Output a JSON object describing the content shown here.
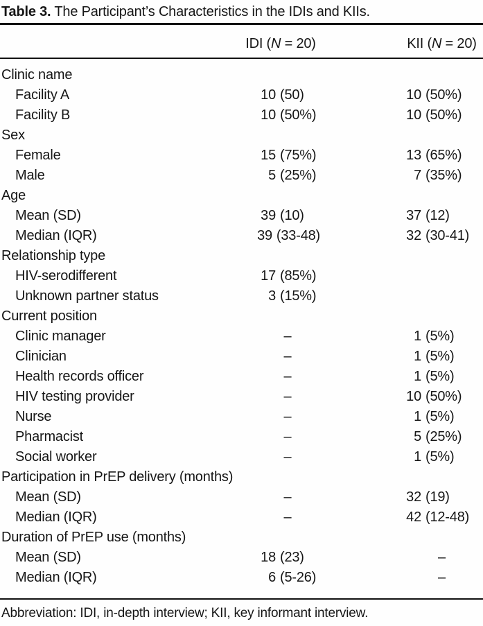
{
  "title": {
    "label": "Table 3.",
    "text": "The Participant’s Characteristics in the IDIs and KIIs."
  },
  "table": {
    "header": {
      "idi": {
        "pre": "IDI (",
        "n": "N",
        "post": " = 20)"
      },
      "kii": {
        "pre": "KII (",
        "n": "N",
        "post": " = 20)"
      }
    },
    "rows": [
      {
        "label": "Clinic name",
        "indent": false,
        "idi": "",
        "kii": ""
      },
      {
        "label": "Facility A",
        "indent": true,
        "idi": "10 (50)",
        "kii": "10 (50%)"
      },
      {
        "label": "Facility B",
        "indent": true,
        "idi": "10 (50%)",
        "kii": "10 (50%)"
      },
      {
        "label": "Sex",
        "indent": false,
        "idi": "",
        "kii": ""
      },
      {
        "label": "Female",
        "indent": true,
        "idi": "15 (75%)",
        "kii": "13 (65%)"
      },
      {
        "label": "Male",
        "indent": true,
        "idi": "5 (25%)",
        "kii": "7 (35%)"
      },
      {
        "label": "Age",
        "indent": false,
        "idi": "",
        "kii": ""
      },
      {
        "label": "Mean (SD)",
        "indent": true,
        "idi": "39 (10)",
        "kii": "37 (12)"
      },
      {
        "label": "Median (IQR)",
        "indent": true,
        "idi": "39 (33-48)",
        "kii": "32 (30-41)"
      },
      {
        "label": "Relationship type",
        "indent": false,
        "idi": "",
        "kii": ""
      },
      {
        "label": "HIV-serodifferent",
        "indent": true,
        "idi": "17 (85%)",
        "kii": ""
      },
      {
        "label": "Unknown partner status",
        "indent": true,
        "idi": "3 (15%)",
        "kii": ""
      },
      {
        "label": "Current position",
        "indent": false,
        "idi": "",
        "kii": ""
      },
      {
        "label": "Clinic manager",
        "indent": true,
        "idi": "–",
        "kii": "1 (5%)"
      },
      {
        "label": "Clinician",
        "indent": true,
        "idi": "–",
        "kii": "1 (5%)"
      },
      {
        "label": "Health records officer",
        "indent": true,
        "idi": "–",
        "kii": "1 (5%)"
      },
      {
        "label": "HIV testing provider",
        "indent": true,
        "idi": "–",
        "kii": "10 (50%)"
      },
      {
        "label": "Nurse",
        "indent": true,
        "idi": "–",
        "kii": "1 (5%)"
      },
      {
        "label": "Pharmacist",
        "indent": true,
        "idi": "–",
        "kii": "5 (25%)"
      },
      {
        "label": "Social worker",
        "indent": true,
        "idi": "–",
        "kii": "1 (5%)"
      },
      {
        "label": "Participation in PrEP delivery (months)",
        "indent": false,
        "idi": "",
        "kii": ""
      },
      {
        "label": "Mean (SD)",
        "indent": true,
        "idi": "–",
        "kii": "32 (19)"
      },
      {
        "label": "Median (IQR)",
        "indent": true,
        "idi": "–",
        "kii": "42 (12-48)"
      },
      {
        "label": "Duration of PrEP use (months)",
        "indent": false,
        "idi": "",
        "kii": ""
      },
      {
        "label": "Mean (SD)",
        "indent": true,
        "idi": "18 (23)",
        "kii": "–"
      },
      {
        "label": "Median (IQR)",
        "indent": true,
        "idi": "6 (5-26)",
        "kii": "–"
      }
    ]
  },
  "footnote": "Abbreviation: IDI, in-depth interview; KII, key informant interview.",
  "colors": {
    "text": "#161616",
    "rule": "#111111",
    "background": "#fefefe"
  }
}
